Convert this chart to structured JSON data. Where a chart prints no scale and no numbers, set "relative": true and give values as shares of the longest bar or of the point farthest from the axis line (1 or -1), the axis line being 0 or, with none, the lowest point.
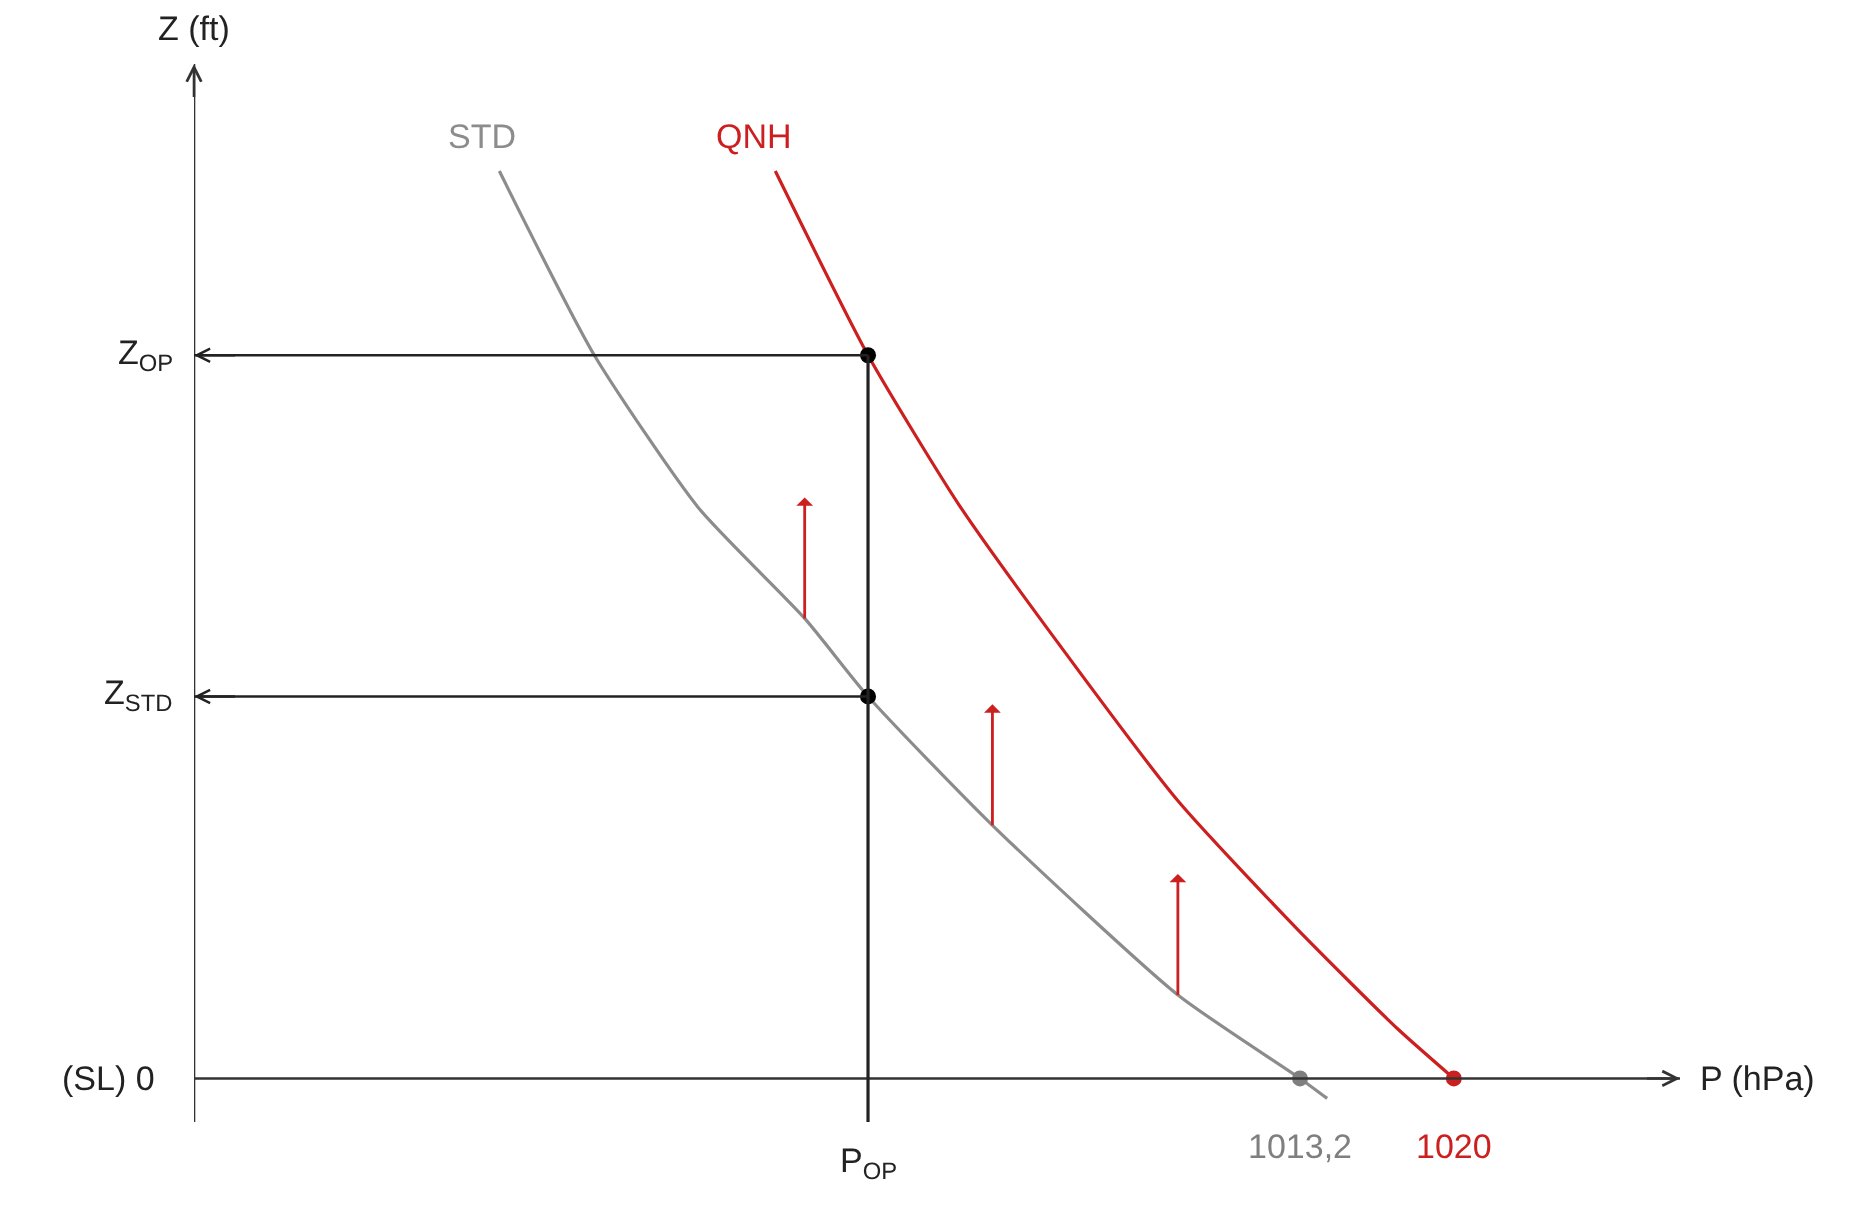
{
  "chart_data": {
    "type": "line",
    "xlabel": "P (hPa)",
    "ylabel": "Z (ft)",
    "relative": true,
    "tick_labels": "x",
    "xlim": [
      964.3,
      1030
    ],
    "xticks": [
      {
        "value": 1013.2,
        "label": "1013,2"
      },
      {
        "value": 1020,
        "label": "1020"
      }
    ],
    "series": [
      {
        "name": "STD",
        "color": "#8c8c8c",
        "x": [
          977.8,
          982.0,
          986.6,
          991.3,
          994.1,
          999.6,
          1007.8,
          1013.2,
          1014.4
        ],
        "values": [
          1.0,
          0.797,
          0.629,
          0.507,
          0.421,
          0.279,
          0.092,
          0,
          -0.022
        ]
      },
      {
        "name": "QNH",
        "color": "#cc1f1f",
        "x": [
          990.0,
          994.1,
          998.1,
          1002.5,
          1007.8,
          1013.1,
          1017.5,
          1020
        ],
        "values": [
          1.0,
          0.797,
          0.633,
          0.48,
          0.306,
          0.164,
          0.055,
          0
        ]
      },
      {
        "type": "scatter",
        "color": "#000000",
        "x": [
          994.1,
          994.1
        ],
        "values": [
          0.797,
          0.421
        ]
      },
      {
        "type": "scatter",
        "color": "#7f7f7f",
        "x": [
          1013.2
        ],
        "values": [
          0
        ]
      },
      {
        "type": "scatter",
        "color": "#cc1f1f",
        "x": [
          1020
        ],
        "values": [
          0
        ]
      }
    ],
    "ref_lines": [
      {
        "axis": "y",
        "value": 0.797,
        "label": "Z$_{OP}$"
      },
      {
        "axis": "y",
        "value": 0.421,
        "label": "Z$_{STD}$"
      },
      {
        "axis": "x",
        "value": 994.1,
        "label": "P$_{OP}$"
      }
    ],
    "annotations": [
      "(SL) 0"
    ]
  }
}
